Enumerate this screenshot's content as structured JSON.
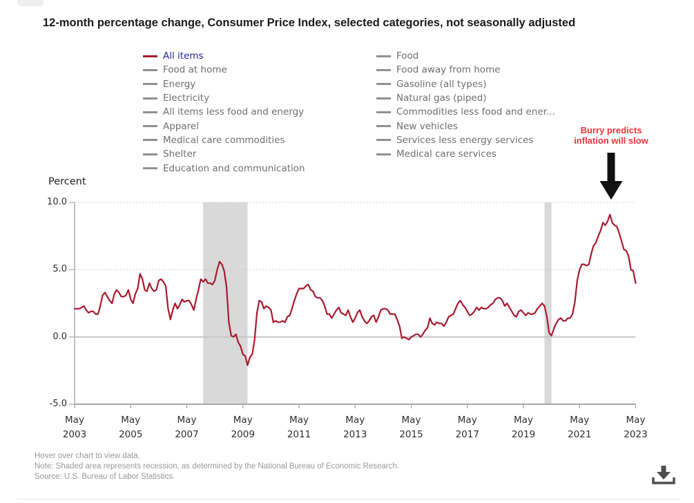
{
  "title": "12-month percentage change, Consumer Price Index, selected categories, not seasonally adjusted",
  "legend": {
    "column1": [
      {
        "label": "All items",
        "active": true
      },
      {
        "label": "Food at home",
        "active": false
      },
      {
        "label": "Energy",
        "active": false
      },
      {
        "label": "Electricity",
        "active": false
      },
      {
        "label": "All items less food and energy",
        "active": false
      },
      {
        "label": "Apparel",
        "active": false
      },
      {
        "label": "Medical care commodities",
        "active": false
      },
      {
        "label": "Shelter",
        "active": false
      },
      {
        "label": "Education and communication",
        "active": false
      }
    ],
    "column2": [
      {
        "label": "Food",
        "active": false
      },
      {
        "label": "Food away from home",
        "active": false
      },
      {
        "label": "Gasoline (all types)",
        "active": false
      },
      {
        "label": "Natural gas (piped)",
        "active": false
      },
      {
        "label": "Commodities less food and ener...",
        "active": false
      },
      {
        "label": "New vehicles",
        "active": false
      },
      {
        "label": "Services less energy services",
        "active": false
      },
      {
        "label": "Medical care services",
        "active": false
      }
    ]
  },
  "annotation": {
    "line1": "Burry predicts",
    "line2": "inflation will slow"
  },
  "y_axis": {
    "label": "Percent",
    "ticks": [
      "10.0",
      "5.0",
      "0.0",
      "-5.0"
    ]
  },
  "x_axis": {
    "month": "May",
    "years": [
      "2003",
      "2005",
      "2007",
      "2009",
      "2011",
      "2013",
      "2015",
      "2017",
      "2019",
      "2021",
      "2023"
    ]
  },
  "footer": {
    "hover": "Hover over chart to view data.",
    "note": "Note: Shaded area represents recession, as determined by the National Bureau of Economic Research.",
    "source": "Source: U.S. Bureau of Labor Statistics."
  },
  "icons": {
    "download": "download-icon"
  },
  "colors": {
    "line": "#a6192e",
    "active_legend_text": "#2424a0",
    "legend_text": "#6e6e6e",
    "legend_dash": "#909090",
    "annotation_red": "#ee3338",
    "recession_band": "#d9d9d9",
    "grid_dotted": "#c9c9c9",
    "zero_line": "#c4c4c4",
    "axis_line": "#b0b0b0",
    "arrow": "#111111"
  },
  "chart_data": {
    "type": "line",
    "title": "12-month percentage change, Consumer Price Index, selected categories, not seasonally adjusted",
    "ylabel": "Percent",
    "ylim": [
      -5,
      10
    ],
    "yticks": [
      10,
      5,
      0,
      -5
    ],
    "x_start": "2003-05",
    "x_end": "2023-05",
    "x_interval": "monthly",
    "grid": "dotted horizontal at 5 and 10, solid at 0",
    "legend_position": "top",
    "recessions": [
      {
        "start": "2007-12",
        "end": "2009-06"
      },
      {
        "start": "2020-02",
        "end": "2020-04"
      }
    ],
    "series": [
      {
        "name": "All items",
        "color": "#a6192e",
        "values": [
          2.1,
          2.1,
          2.1,
          2.2,
          2.3,
          2.0,
          1.8,
          1.9,
          1.9,
          1.7,
          1.7,
          2.3,
          3.1,
          3.3,
          3.0,
          2.7,
          2.5,
          3.2,
          3.5,
          3.3,
          3.0,
          3.0,
          3.1,
          3.5,
          2.8,
          2.5,
          3.2,
          3.6,
          4.7,
          4.3,
          3.5,
          3.4,
          4.0,
          3.6,
          3.4,
          3.5,
          4.2,
          4.3,
          4.1,
          3.8,
          2.1,
          1.3,
          2.0,
          2.5,
          2.1,
          2.4,
          2.8,
          2.6,
          2.7,
          2.7,
          2.4,
          2.0,
          2.8,
          3.5,
          4.3,
          4.1,
          4.3,
          4.0,
          4.0,
          3.9,
          4.2,
          5.0,
          5.6,
          5.4,
          4.9,
          3.7,
          1.1,
          0.1,
          0.0,
          0.2,
          -0.4,
          -0.7,
          -1.3,
          -1.4,
          -2.1,
          -1.5,
          -1.3,
          -0.2,
          1.8,
          2.7,
          2.6,
          2.1,
          2.3,
          2.2,
          2.0,
          1.1,
          1.2,
          1.1,
          1.1,
          1.2,
          1.1,
          1.5,
          1.6,
          2.1,
          2.7,
          3.2,
          3.6,
          3.6,
          3.6,
          3.8,
          3.9,
          3.5,
          3.4,
          3.0,
          2.9,
          2.9,
          2.7,
          2.3,
          1.7,
          1.7,
          1.4,
          1.7,
          2.0,
          2.2,
          1.8,
          1.7,
          1.6,
          2.0,
          1.5,
          1.1,
          1.4,
          1.8,
          2.0,
          1.5,
          1.2,
          1.0,
          1.2,
          1.5,
          1.6,
          1.1,
          1.5,
          2.0,
          2.1,
          2.1,
          2.0,
          1.7,
          1.7,
          1.7,
          1.3,
          0.8,
          -0.1,
          0.0,
          -0.1,
          -0.2,
          0.0,
          0.1,
          0.2,
          0.2,
          0.0,
          0.2,
          0.5,
          0.7,
          1.4,
          1.0,
          0.9,
          1.1,
          1.0,
          1.0,
          0.8,
          1.1,
          1.5,
          1.6,
          1.7,
          2.1,
          2.5,
          2.7,
          2.4,
          2.2,
          1.9,
          1.6,
          1.7,
          1.9,
          2.2,
          2.0,
          2.2,
          2.1,
          2.1,
          2.2,
          2.4,
          2.5,
          2.8,
          2.9,
          2.9,
          2.7,
          2.3,
          2.5,
          2.2,
          1.9,
          1.6,
          1.5,
          1.9,
          2.0,
          1.8,
          1.6,
          1.8,
          1.7,
          1.7,
          1.8,
          2.1,
          2.3,
          2.5,
          2.3,
          1.5,
          0.3,
          0.1,
          0.6,
          1.0,
          1.3,
          1.4,
          1.2,
          1.2,
          1.4,
          1.4,
          1.7,
          2.6,
          4.2,
          5.0,
          5.4,
          5.4,
          5.3,
          5.4,
          6.2,
          6.8,
          7.0,
          7.5,
          7.9,
          8.5,
          8.3,
          8.6,
          9.1,
          8.5,
          8.3,
          8.2,
          7.7,
          7.1,
          6.5,
          6.4,
          6.0,
          5.0,
          4.9,
          4.0
        ]
      }
    ]
  }
}
